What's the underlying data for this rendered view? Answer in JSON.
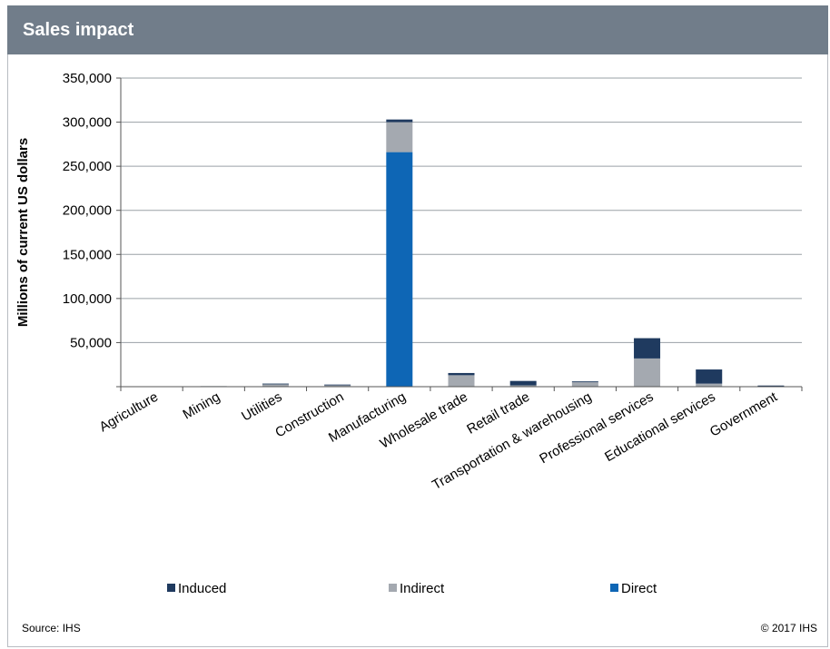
{
  "header": {
    "title": "Sales impact"
  },
  "footer": {
    "source": "Source: IHS",
    "copyright": "© 2017 IHS"
  },
  "colors": {
    "induced": "#1f3a5f",
    "indirect": "#a4a9b0",
    "direct": "#0e66b5",
    "grid": "#9aa0a6"
  },
  "chart_data": {
    "type": "bar",
    "stacked": true,
    "ylabel": "Millions of current US dollars",
    "ylim": [
      0,
      350000
    ],
    "yticks": [
      {
        "value": 0,
        "label": ""
      },
      {
        "value": 50000,
        "label": "50,000"
      },
      {
        "value": 100000,
        "label": "100,000"
      },
      {
        "value": 150000,
        "label": "150,000"
      },
      {
        "value": 200000,
        "label": "200,000"
      },
      {
        "value": 250000,
        "label": "250,000"
      },
      {
        "value": 300000,
        "label": "300,000"
      },
      {
        "value": 350000,
        "label": "350,000"
      }
    ],
    "grid": true,
    "legend_position": "bottom",
    "categories": [
      "Agriculture",
      "Mining",
      "Utilities",
      "Construction",
      "Manufacturing",
      "Wholesale trade",
      "Retail trade",
      "Transportation & warehousing",
      "Professional services",
      "Educational services",
      "Government"
    ],
    "series": [
      {
        "name": "Direct",
        "color_key": "direct",
        "values": [
          0,
          0,
          0,
          0,
          266000,
          0,
          0,
          0,
          0,
          0,
          0
        ]
      },
      {
        "name": "Indirect",
        "color_key": "indirect",
        "values": [
          300,
          500,
          3000,
          2000,
          34000,
          13000,
          1500,
          5000,
          32000,
          3500,
          1000
        ]
      },
      {
        "name": "Induced",
        "color_key": "induced",
        "values": [
          100,
          100,
          500,
          400,
          3000,
          2500,
          5000,
          1000,
          23000,
          16000,
          300
        ]
      }
    ],
    "legend": [
      {
        "name": "Induced",
        "color_key": "induced"
      },
      {
        "name": "Indirect",
        "color_key": "indirect"
      },
      {
        "name": "Direct",
        "color_key": "direct"
      }
    ]
  }
}
